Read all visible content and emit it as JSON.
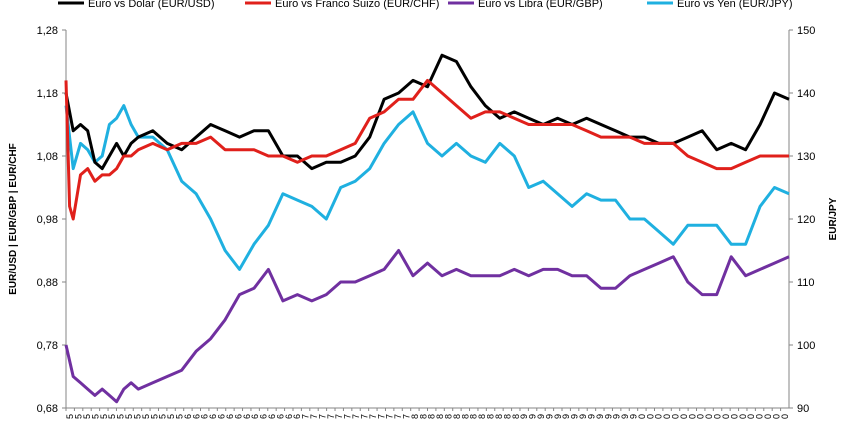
{
  "chart_data": {
    "type": "line",
    "title": "",
    "legend_position": "top",
    "xlabel": "",
    "ylabel_left": "EUR/USD  |  EUR/GBP  |  EUR/CHF",
    "ylabel_right": "EUR/JPY",
    "y_left": {
      "ylim": [
        0.68,
        1.28
      ],
      "ticks": [
        "1,28",
        "1,18",
        "1,08",
        "0,98",
        "0,88",
        "0,78",
        "0,68"
      ]
    },
    "y_right": {
      "ylim": [
        90,
        150
      ],
      "ticks": [
        "150",
        "140",
        "130",
        "120",
        "110",
        "100",
        "90"
      ]
    },
    "x_index_range": [
      0,
      100
    ],
    "x_tick_labels": [
      "5",
      "5",
      "5",
      "5",
      "5",
      "5",
      "5",
      "5",
      "5",
      "5",
      "5",
      "5",
      "5",
      "5",
      "6",
      "6",
      "6",
      "6",
      "6",
      "6",
      "6",
      "6",
      "6",
      "6",
      "6",
      "6",
      "6",
      "6",
      "7",
      "7",
      "7",
      "7",
      "7",
      "7",
      "7",
      "7",
      "7",
      "7",
      "7",
      "7",
      "7",
      "8",
      "8",
      "8",
      "8",
      "8",
      "8",
      "8",
      "8",
      "8",
      "8",
      "8",
      "8",
      "8",
      "9",
      "9",
      "9",
      "9",
      "9",
      "9",
      "9",
      "9",
      "9",
      "9",
      "9",
      "9",
      "9",
      "9",
      "0",
      "0",
      "0",
      "0",
      "0",
      "0",
      "0",
      "0",
      "0",
      "0",
      "0",
      "0",
      "0",
      "0",
      "0",
      "0",
      "0",
      "0"
    ],
    "grid": false,
    "series": [
      {
        "name": "Euro vs Dolar (EUR/USD)",
        "color": "#000000",
        "axis": "left",
        "x": [
          0,
          1,
          2,
          3,
          4,
          5,
          6,
          7,
          8,
          9,
          10,
          12,
          14,
          16,
          18,
          20,
          22,
          24,
          26,
          28,
          30,
          32,
          34,
          36,
          38,
          40,
          42,
          44,
          46,
          48,
          50,
          52,
          54,
          56,
          58,
          60,
          62,
          64,
          66,
          68,
          70,
          72,
          74,
          76,
          78,
          80,
          82,
          84,
          86,
          88,
          90,
          92,
          94,
          96,
          98,
          100
        ],
        "values": [
          1.18,
          1.12,
          1.13,
          1.12,
          1.07,
          1.06,
          1.08,
          1.1,
          1.08,
          1.1,
          1.11,
          1.12,
          1.1,
          1.09,
          1.11,
          1.13,
          1.12,
          1.11,
          1.12,
          1.12,
          1.08,
          1.08,
          1.06,
          1.07,
          1.07,
          1.08,
          1.11,
          1.17,
          1.18,
          1.2,
          1.19,
          1.24,
          1.23,
          1.19,
          1.16,
          1.14,
          1.15,
          1.14,
          1.13,
          1.14,
          1.13,
          1.14,
          1.13,
          1.12,
          1.11,
          1.11,
          1.1,
          1.1,
          1.11,
          1.12,
          1.09,
          1.1,
          1.09,
          1.13,
          1.18,
          1.17
        ]
      },
      {
        "name": "Euro vs Franco Suizo (EUR/CHF)",
        "color": "#e0201b",
        "axis": "left",
        "x": [
          0,
          0.5,
          1,
          2,
          3,
          4,
          5,
          6,
          7,
          8,
          9,
          10,
          12,
          14,
          16,
          18,
          20,
          22,
          24,
          26,
          28,
          30,
          32,
          34,
          36,
          38,
          40,
          42,
          44,
          46,
          48,
          50,
          52,
          54,
          56,
          58,
          60,
          62,
          64,
          66,
          68,
          70,
          72,
          74,
          76,
          78,
          80,
          82,
          84,
          86,
          88,
          90,
          92,
          94,
          96,
          98,
          100
        ],
        "values": [
          1.2,
          1.0,
          0.98,
          1.05,
          1.06,
          1.04,
          1.05,
          1.05,
          1.06,
          1.08,
          1.08,
          1.09,
          1.1,
          1.09,
          1.1,
          1.1,
          1.11,
          1.09,
          1.09,
          1.09,
          1.08,
          1.08,
          1.07,
          1.08,
          1.08,
          1.09,
          1.1,
          1.14,
          1.15,
          1.17,
          1.17,
          1.2,
          1.18,
          1.16,
          1.14,
          1.15,
          1.15,
          1.14,
          1.13,
          1.13,
          1.13,
          1.13,
          1.12,
          1.11,
          1.11,
          1.11,
          1.1,
          1.1,
          1.1,
          1.08,
          1.07,
          1.06,
          1.06,
          1.07,
          1.08,
          1.08,
          1.08
        ]
      },
      {
        "name": "Euro vs Libra (EUR/GBP)",
        "color": "#7030a0",
        "axis": "left",
        "x": [
          0,
          1,
          2,
          3,
          4,
          5,
          6,
          7,
          8,
          9,
          10,
          12,
          14,
          16,
          18,
          20,
          22,
          24,
          26,
          28,
          30,
          32,
          34,
          36,
          38,
          40,
          42,
          44,
          46,
          48,
          50,
          52,
          54,
          56,
          58,
          60,
          62,
          64,
          66,
          68,
          70,
          72,
          74,
          76,
          78,
          80,
          82,
          84,
          86,
          88,
          90,
          92,
          94,
          96,
          98,
          100
        ],
        "values": [
          0.78,
          0.73,
          0.72,
          0.71,
          0.7,
          0.71,
          0.7,
          0.69,
          0.71,
          0.72,
          0.71,
          0.72,
          0.73,
          0.74,
          0.77,
          0.79,
          0.82,
          0.86,
          0.87,
          0.9,
          0.85,
          0.86,
          0.85,
          0.86,
          0.88,
          0.88,
          0.89,
          0.9,
          0.93,
          0.89,
          0.91,
          0.89,
          0.9,
          0.89,
          0.89,
          0.89,
          0.9,
          0.89,
          0.9,
          0.9,
          0.89,
          0.89,
          0.87,
          0.87,
          0.89,
          0.9,
          0.91,
          0.92,
          0.88,
          0.86,
          0.86,
          0.92,
          0.89,
          0.9,
          0.91,
          0.92
        ]
      },
      {
        "name": "Euro vs Yen (EUR/JPY)",
        "color": "#1fb0e0",
        "axis": "right",
        "x": [
          0,
          1,
          2,
          3,
          4,
          5,
          6,
          7,
          8,
          9,
          10,
          12,
          14,
          16,
          18,
          20,
          22,
          24,
          26,
          28,
          30,
          32,
          34,
          36,
          38,
          40,
          42,
          44,
          46,
          48,
          50,
          52,
          54,
          56,
          58,
          60,
          62,
          64,
          66,
          68,
          70,
          72,
          74,
          76,
          78,
          80,
          82,
          84,
          86,
          88,
          90,
          92,
          94,
          96,
          98,
          100
        ],
        "values": [
          138,
          128,
          132,
          131,
          129,
          130,
          135,
          136,
          138,
          135,
          133,
          133,
          131,
          126,
          124,
          120,
          115,
          112,
          116,
          119,
          124,
          123,
          122,
          120,
          125,
          126,
          128,
          132,
          135,
          137,
          132,
          130,
          132,
          130,
          129,
          132,
          130,
          125,
          126,
          124,
          122,
          124,
          123,
          123,
          120,
          120,
          118,
          116,
          119,
          119,
          119,
          116,
          116,
          122,
          125,
          124
        ]
      }
    ]
  }
}
